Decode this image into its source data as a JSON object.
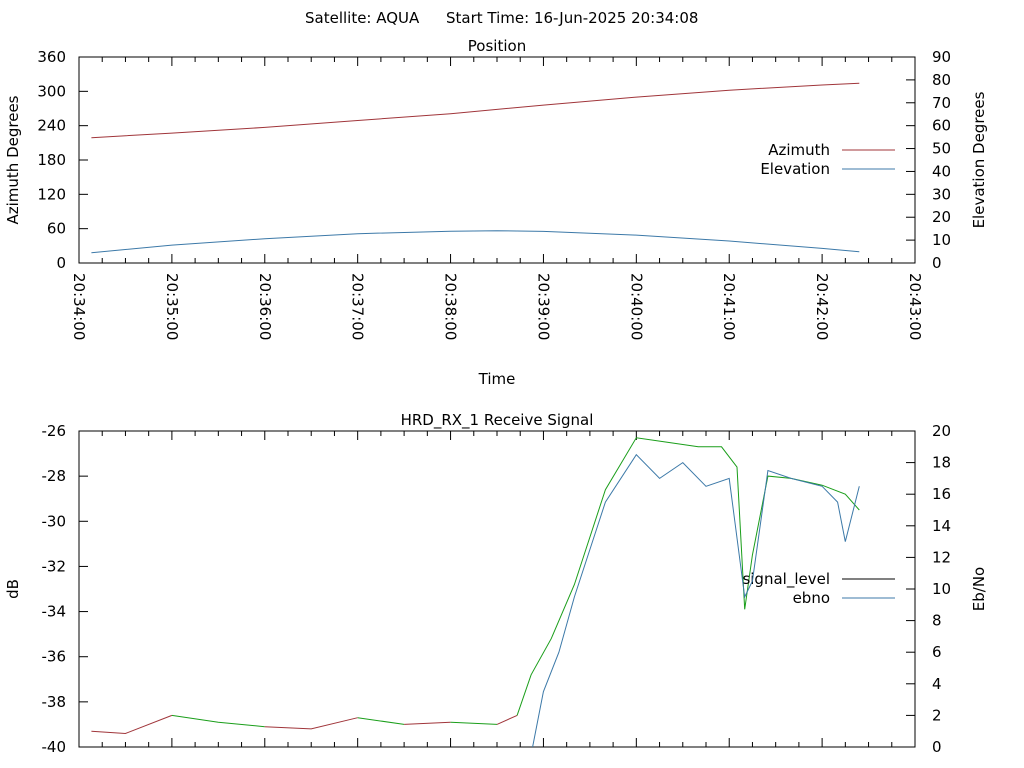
{
  "header": {
    "satellite_label": "Satellite: AQUA",
    "start_time_label": "Start Time: 16-Jun-2025 20:34:08"
  },
  "chart_data": [
    {
      "type": "line",
      "title": "Position",
      "xlabel": "Time",
      "ylabel": "Azimuth Degrees",
      "y2label": "Elevation Degrees",
      "xlim": [
        "20:34:00",
        "20:43:00"
      ],
      "x_ticks": [
        "20:34:00",
        "20:35:00",
        "20:36:00",
        "20:37:00",
        "20:38:00",
        "20:39:00",
        "20:40:00",
        "20:41:00",
        "20:42:00",
        "20:43:00"
      ],
      "ylim": [
        0,
        360
      ],
      "y_ticks": [
        0,
        60,
        120,
        180,
        240,
        300,
        360
      ],
      "y2lim": [
        0,
        90
      ],
      "y2_ticks": [
        0,
        10,
        20,
        30,
        40,
        50,
        60,
        70,
        80,
        90
      ],
      "grid": false,
      "legend": "right",
      "series": [
        {
          "name": "Azimuth",
          "axis": "y",
          "color": "#a0353a",
          "x": [
            "20:34:08",
            "20:35:00",
            "20:36:00",
            "20:37:00",
            "20:38:00",
            "20:39:00",
            "20:40:00",
            "20:41:00",
            "20:42:00",
            "20:42:24"
          ],
          "values": [
            219,
            227,
            237,
            249,
            261,
            276,
            290,
            302,
            311,
            314
          ]
        },
        {
          "name": "Elevation",
          "axis": "y2",
          "color": "#3c79a8",
          "x": [
            "20:34:08",
            "20:35:00",
            "20:36:00",
            "20:37:00",
            "20:38:00",
            "20:38:30",
            "20:39:00",
            "20:40:00",
            "20:41:00",
            "20:42:00",
            "20:42:24"
          ],
          "values": [
            4.5,
            7.8,
            10.6,
            12.8,
            13.9,
            14.1,
            13.8,
            12.2,
            9.6,
            6.4,
            4.9
          ]
        }
      ]
    },
    {
      "type": "line",
      "title": "HRD_RX_1 Receive Signal",
      "ylabel": "dB",
      "y2label": "Eb/No",
      "xlim": [
        "20:34:00",
        "20:43:00"
      ],
      "ylim": [
        -40,
        -26
      ],
      "y_ticks": [
        -40,
        -38,
        -36,
        -34,
        -32,
        -30,
        -28,
        -26
      ],
      "y2lim": [
        0,
        20
      ],
      "y2_ticks": [
        0,
        2,
        4,
        6,
        8,
        10,
        12,
        14,
        16,
        18,
        20
      ],
      "grid": false,
      "legend": "right",
      "series": [
        {
          "name": "signal_level",
          "axis": "y",
          "color": "#a0353a",
          "color_high": "#1a9e1a",
          "color_threshold": -39.0,
          "x": [
            "20:34:08",
            "20:34:30",
            "20:35:00",
            "20:35:30",
            "20:36:00",
            "20:36:30",
            "20:37:00",
            "20:37:30",
            "20:38:00",
            "20:38:30",
            "20:38:43",
            "20:38:52",
            "20:39:05",
            "20:39:20",
            "20:39:40",
            "20:40:00",
            "20:40:20",
            "20:40:40",
            "20:40:55",
            "20:41:05",
            "20:41:10",
            "20:41:15",
            "20:41:25",
            "20:41:40",
            "20:42:00",
            "20:42:15",
            "20:42:24"
          ],
          "values": [
            -39.3,
            -39.4,
            -38.6,
            -38.9,
            -39.1,
            -39.2,
            -38.7,
            -39.0,
            -38.9,
            -39.0,
            -38.6,
            -36.8,
            -35.2,
            -32.8,
            -28.6,
            -26.3,
            -26.5,
            -26.7,
            -26.7,
            -27.6,
            -33.9,
            -31.5,
            -28.0,
            -28.1,
            -28.4,
            -28.8,
            -29.5
          ]
        },
        {
          "name": "ebno",
          "axis": "y2",
          "color": "#3c79a8",
          "x": [
            "20:38:53",
            "20:39:00",
            "20:39:10",
            "20:39:20",
            "20:39:40",
            "20:40:00",
            "20:40:15",
            "20:40:30",
            "20:40:45",
            "20:41:00",
            "20:41:10",
            "20:41:15",
            "20:41:25",
            "20:41:40",
            "20:42:00",
            "20:42:10",
            "20:42:15",
            "20:42:24"
          ],
          "values": [
            0,
            3.5,
            6.0,
            9.5,
            15.5,
            18.5,
            17.0,
            18.0,
            16.5,
            17.0,
            9.5,
            10.5,
            17.5,
            17.0,
            16.5,
            15.5,
            13.0,
            16.5
          ]
        }
      ]
    }
  ]
}
